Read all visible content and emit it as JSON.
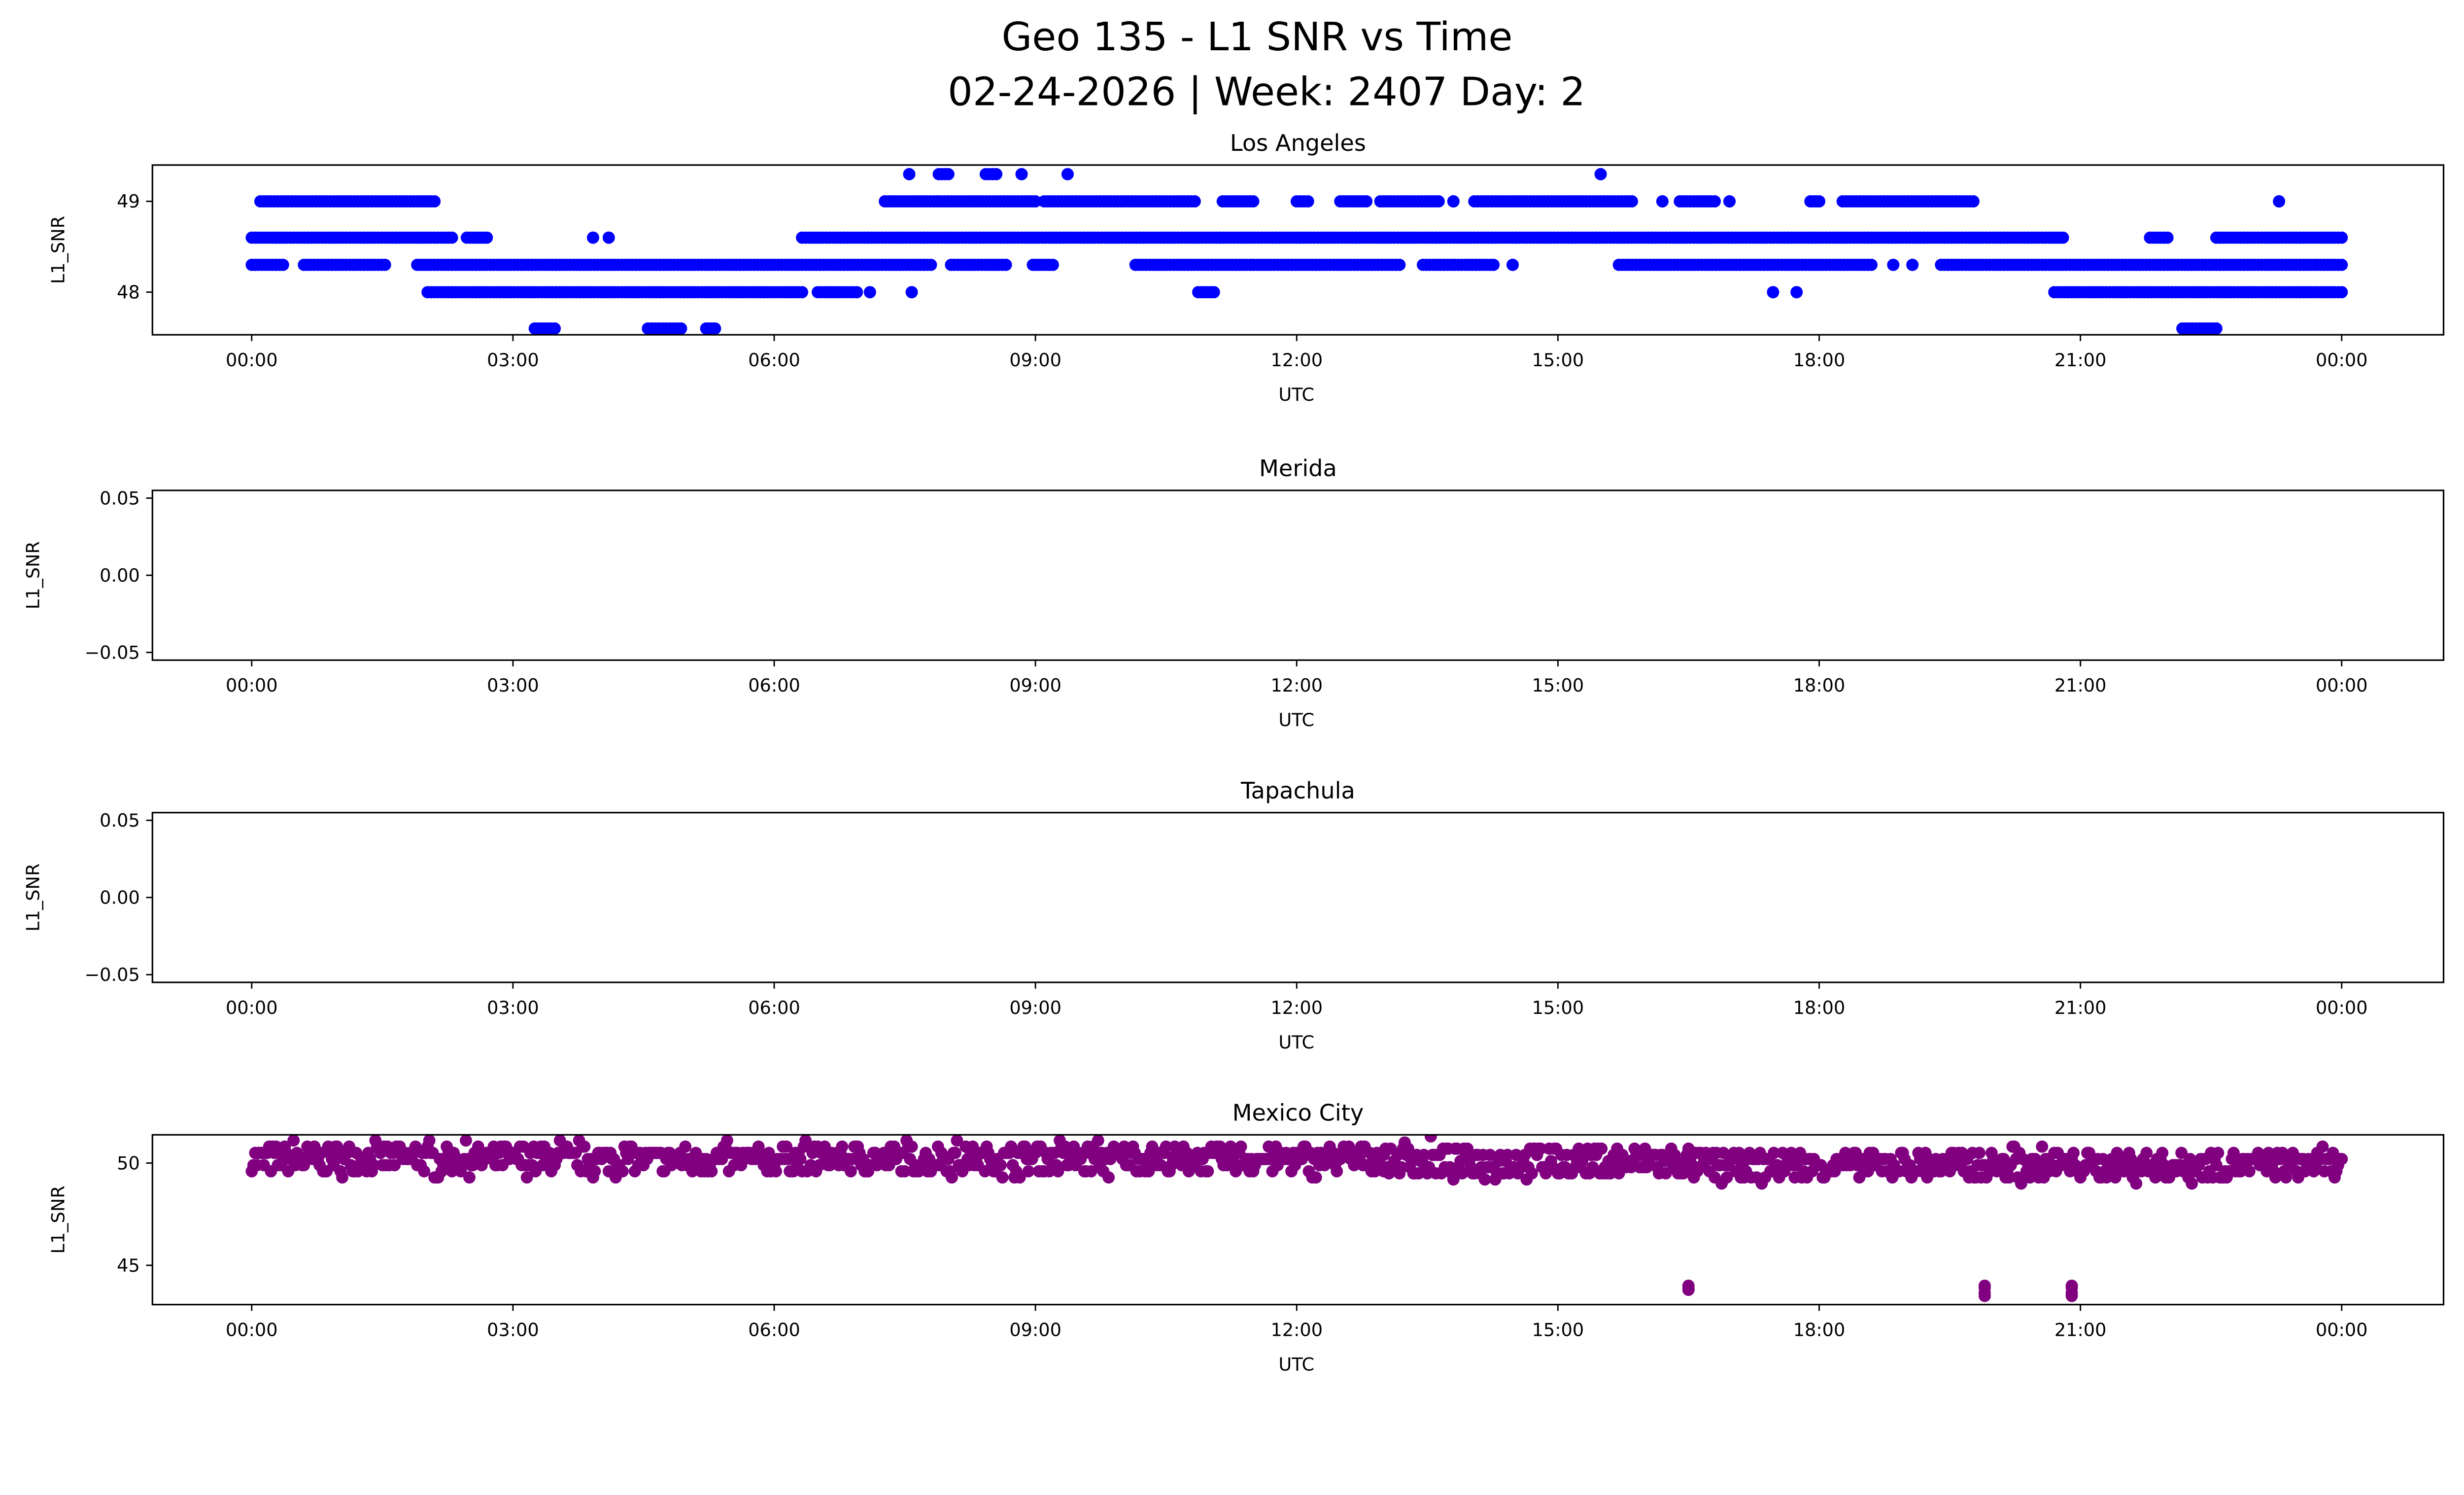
{
  "chart_data": {
    "title": "Geo 135 - L1 SNR vs Time",
    "subtitle": "02-24-2026 | Week: 2407 Day: 2",
    "type": "scatter",
    "x_tick_labels": [
      "00:00",
      "03:00",
      "06:00",
      "09:00",
      "12:00",
      "15:00",
      "18:00",
      "21:00",
      "00:00"
    ],
    "x_tick_hours": [
      0,
      3,
      6,
      9,
      12,
      15,
      18,
      21,
      24
    ],
    "xlim_hours": [
      -1.14,
      25.17
    ],
    "subplots": [
      {
        "title": "Los Angeles",
        "xlabel": "UTC",
        "ylabel": "L1_SNR",
        "color": "#0000ff",
        "ylim": [
          47.53,
          49.4
        ],
        "yticks": [
          48,
          49
        ],
        "ytick_labels": [
          "48",
          "49"
        ],
        "runs_note": "[start_hour, end_hour, L1_SNR]",
        "runs": [
          [
            7.55,
            7.55,
            49.3
          ],
          [
            7.89,
            8.0,
            49.3
          ],
          [
            8.43,
            8.55,
            49.3
          ],
          [
            8.84,
            8.84,
            49.3
          ],
          [
            9.37,
            9.37,
            49.3
          ],
          [
            15.49,
            15.49,
            49.3
          ],
          [
            0.1,
            2.1,
            49.0
          ],
          [
            7.27,
            9.0,
            49.0
          ],
          [
            9.1,
            10.83,
            49.0
          ],
          [
            11.15,
            11.5,
            49.0
          ],
          [
            12.0,
            12.13,
            49.0
          ],
          [
            12.5,
            12.8,
            49.0
          ],
          [
            12.96,
            13.63,
            49.0
          ],
          [
            13.8,
            13.8,
            49.0
          ],
          [
            14.04,
            15.85,
            49.0
          ],
          [
            16.2,
            16.2,
            49.0
          ],
          [
            16.4,
            16.8,
            49.0
          ],
          [
            16.97,
            16.97,
            49.0
          ],
          [
            17.9,
            18.0,
            49.0
          ],
          [
            18.27,
            19.77,
            49.0
          ],
          [
            23.28,
            23.28,
            49.0
          ],
          [
            0.0,
            2.3,
            48.6
          ],
          [
            2.47,
            2.7,
            48.6
          ],
          [
            3.92,
            3.92,
            48.6
          ],
          [
            4.1,
            4.1,
            48.6
          ],
          [
            6.32,
            20.8,
            48.6
          ],
          [
            21.8,
            22.0,
            48.6
          ],
          [
            22.56,
            24.0,
            48.6
          ],
          [
            0.0,
            0.36,
            48.3
          ],
          [
            0.6,
            1.53,
            48.3
          ],
          [
            1.9,
            7.8,
            48.3
          ],
          [
            8.03,
            8.66,
            48.3
          ],
          [
            8.97,
            9.2,
            48.3
          ],
          [
            10.15,
            13.18,
            48.3
          ],
          [
            13.45,
            14.26,
            48.3
          ],
          [
            14.48,
            14.48,
            48.3
          ],
          [
            15.7,
            18.6,
            48.3
          ],
          [
            18.85,
            18.85,
            48.3
          ],
          [
            19.07,
            19.07,
            48.3
          ],
          [
            19.4,
            24.0,
            48.3
          ],
          [
            2.02,
            6.32,
            48.0
          ],
          [
            6.5,
            6.95,
            48.0
          ],
          [
            7.1,
            7.1,
            48.0
          ],
          [
            7.58,
            7.58,
            48.0
          ],
          [
            10.87,
            11.05,
            48.0
          ],
          [
            17.47,
            17.47,
            48.0
          ],
          [
            17.74,
            17.74,
            48.0
          ],
          [
            20.7,
            24.0,
            48.0
          ],
          [
            3.25,
            3.48,
            47.6
          ],
          [
            4.55,
            4.93,
            47.6
          ],
          [
            5.22,
            5.32,
            47.6
          ],
          [
            22.17,
            22.56,
            47.6
          ]
        ]
      },
      {
        "title": "Merida",
        "xlabel": "UTC",
        "ylabel": "L1_SNR",
        "ylim": [
          -0.055,
          0.055
        ],
        "yticks": [
          0.05,
          0.0,
          -0.05
        ],
        "ytick_labels": [
          "0.05",
          "0.00",
          "−0.05"
        ],
        "runs": []
      },
      {
        "title": "Tapachula",
        "xlabel": "UTC",
        "ylabel": "L1_SNR",
        "ylim": [
          -0.055,
          0.055
        ],
        "yticks": [
          0.05,
          0.0,
          -0.05
        ],
        "ytick_labels": [
          "0.05",
          "0.00",
          "−0.05"
        ],
        "runs": []
      },
      {
        "title": "Mexico City",
        "xlabel": "UTC",
        "ylabel": "L1_SNR",
        "color": "#800080",
        "ylim": [
          43.08,
          51.38
        ],
        "yticks": [
          45,
          50
        ],
        "ytick_labels": [
          "45",
          "50"
        ],
        "bands_note": "[start_hour, end_hour, mean, half_spread]",
        "bands": [
          [
            0.0,
            13.0,
            50.2,
            0.6
          ],
          [
            13.0,
            16.5,
            50.1,
            0.7
          ],
          [
            16.5,
            24.0,
            49.9,
            0.6
          ]
        ],
        "outliers": [
          [
            16.5,
            43.8
          ],
          [
            16.5,
            44.0
          ],
          [
            19.9,
            43.5
          ],
          [
            19.9,
            44.0
          ],
          [
            20.9,
            43.5
          ],
          [
            20.9,
            44.0
          ]
        ]
      }
    ]
  }
}
